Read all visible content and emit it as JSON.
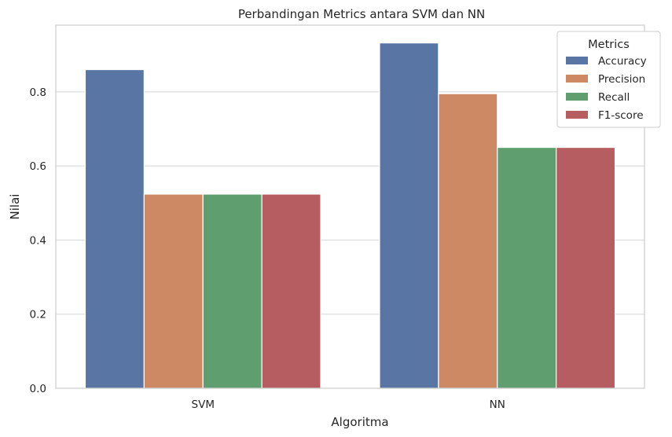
{
  "chart_data": {
    "type": "bar",
    "title": "Perbandingan Metrics antara SVM dan NN",
    "xlabel": "Algoritma",
    "ylabel": "Nilai",
    "categories": [
      "SVM",
      "NN"
    ],
    "ylim": [
      0,
      0.98
    ],
    "yticks": [
      "0.0",
      "0.2",
      "0.4",
      "0.6",
      "0.8"
    ],
    "grid": true,
    "legend": {
      "title": "Metrics",
      "placement": "top-right"
    },
    "series": [
      {
        "name": "Accuracy",
        "color": "#5875a4",
        "values": [
          0.86,
          0.932
        ]
      },
      {
        "name": "Precision",
        "color": "#cc8963",
        "values": [
          0.524,
          0.795
        ]
      },
      {
        "name": "Recall",
        "color": "#5f9e6e",
        "values": [
          0.524,
          0.65
        ]
      },
      {
        "name": "F1-score",
        "color": "#b55d60",
        "values": [
          0.524,
          0.65
        ]
      }
    ]
  }
}
